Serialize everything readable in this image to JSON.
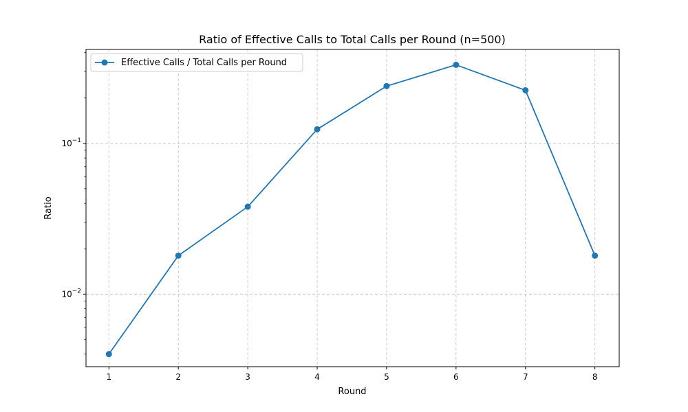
{
  "chart_data": {
    "type": "line",
    "title": "Ratio of Effective Calls to Total Calls per Round (n=500)",
    "xlabel": "Round",
    "ylabel": "Ratio",
    "yscale": "log",
    "ylim": [
      0.0033,
      0.42
    ],
    "xlim": [
      0.67,
      8.35
    ],
    "grid": true,
    "legend_position": "top-left",
    "x_ticks": [
      "1",
      "2",
      "3",
      "4",
      "5",
      "6",
      "7",
      "8"
    ],
    "y_ticks": [
      {
        "value": 0.01,
        "base": "10",
        "exponent": "−2"
      },
      {
        "value": 0.1,
        "base": "10",
        "exponent": "−1"
      }
    ],
    "x": [
      1,
      2,
      3,
      4,
      5,
      6,
      7,
      8
    ],
    "series": [
      {
        "name": "Effective Calls / Total Calls per Round",
        "color": "#1f77b4",
        "marker": "circle",
        "values": [
          0.004,
          0.018,
          0.038,
          0.124,
          0.24,
          0.332,
          0.225,
          0.018
        ]
      }
    ]
  }
}
